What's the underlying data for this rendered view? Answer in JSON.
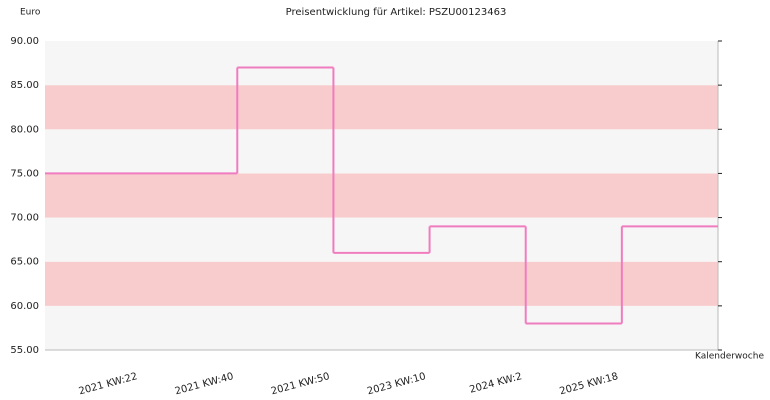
{
  "chart_data": {
    "type": "step",
    "title": "Preisentwicklung für Artikel: PSZU00123463",
    "y_label": "Euro",
    "x_label": "Kalenderwoche",
    "categories": [
      "2021 KW:22",
      "2021 KW:40",
      "2021 KW:50",
      "2023 KW:10",
      "2024 KW:2",
      "2025 KW:18"
    ],
    "values": [
      75,
      87,
      66,
      69,
      58,
      69
    ],
    "color": "#f07cc0",
    "ylim": [
      55,
      90
    ],
    "yticks": [
      {
        "value": 55,
        "label": "55.00"
      },
      {
        "value": 60,
        "label": "60.00"
      },
      {
        "value": 65,
        "label": "65.00"
      },
      {
        "value": 70,
        "label": "70.00"
      },
      {
        "value": 75,
        "label": "75.00"
      },
      {
        "value": 80,
        "label": "80.00"
      },
      {
        "value": 85,
        "label": "85.00"
      },
      {
        "value": 90,
        "label": "90.00"
      }
    ],
    "band_colors": [
      "#f6f6f6",
      "#f8cccc"
    ]
  }
}
